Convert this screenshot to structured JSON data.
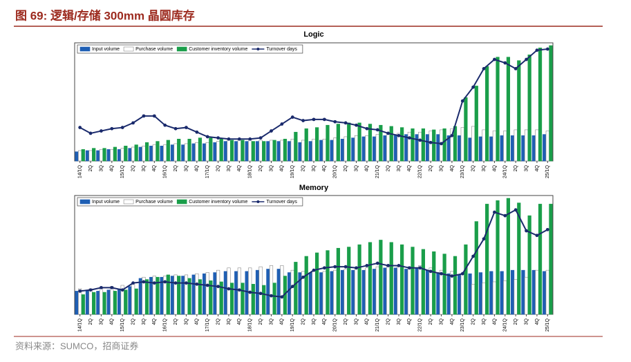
{
  "header": {
    "title": "图 69:  逻辑/存储 300mm 晶圆库存",
    "source": "资料来源：SUMCO，招商证券"
  },
  "chart_data": [
    {
      "type": "bar",
      "title": "Logic",
      "ylim": [
        0,
        100
      ],
      "categories": [
        "14/1Q",
        "2Q",
        "3Q",
        "4Q",
        "15/1Q",
        "2Q",
        "3Q",
        "4Q",
        "16/1Q",
        "2Q",
        "3Q",
        "4Q",
        "17/1Q",
        "2Q",
        "3Q",
        "4Q",
        "18/1Q",
        "2Q",
        "3Q",
        "4Q",
        "19/1Q",
        "2Q",
        "3Q",
        "4Q",
        "20/1Q",
        "2Q",
        "3Q",
        "4Q",
        "21/1Q",
        "2Q",
        "3Q",
        "4Q",
        "22/1Q",
        "2Q",
        "3Q",
        "4Q",
        "23/1Q",
        "2Q",
        "3Q",
        "4Q",
        "24/1Q",
        "2Q",
        "3Q",
        "4Q",
        "25/1Q"
      ],
      "series": [
        {
          "name": "Input volume",
          "color": "#1f5fb4",
          "kind": "bar",
          "values": [
            8,
            9,
            9,
            10,
            10,
            11,
            12,
            13,
            13,
            14,
            14,
            15,
            15,
            16,
            17,
            17,
            17,
            17,
            17,
            17,
            17,
            16,
            17,
            18,
            18,
            19,
            20,
            21,
            21,
            22,
            22,
            23,
            23,
            23,
            23,
            22,
            22,
            20,
            21,
            21,
            22,
            22,
            22,
            22,
            23
          ]
        },
        {
          "name": "Purchase volume",
          "color": "#ffffff",
          "kind": "bar",
          "values": [
            9,
            9,
            10,
            10,
            11,
            12,
            13,
            14,
            14,
            15,
            15,
            16,
            16,
            17,
            18,
            18,
            18,
            18,
            18,
            18,
            19,
            18,
            19,
            19,
            20,
            21,
            22,
            22,
            23,
            24,
            24,
            25,
            25,
            26,
            27,
            28,
            29,
            30,
            27,
            26,
            26,
            27,
            27,
            27,
            26
          ]
        },
        {
          "name": "Customer inventory volume",
          "color": "#1a9e4a",
          "kind": "bar",
          "values": [
            10,
            11,
            11,
            12,
            13,
            14,
            16,
            17,
            18,
            19,
            19,
            20,
            20,
            19,
            18,
            18,
            17,
            17,
            18,
            19,
            25,
            28,
            29,
            31,
            32,
            33,
            33,
            32,
            31,
            30,
            29,
            28,
            28,
            27,
            28,
            30,
            55,
            65,
            82,
            90,
            90,
            87,
            92,
            98,
            100
          ]
        },
        {
          "name": "Turnover days",
          "color": "#1a2a6c",
          "kind": "line",
          "values": [
            29,
            24,
            26,
            28,
            29,
            33,
            39,
            39,
            31,
            28,
            29,
            25,
            21,
            20,
            19,
            19,
            19,
            20,
            26,
            32,
            38,
            35,
            36,
            36,
            34,
            33,
            31,
            28,
            27,
            24,
            22,
            20,
            18,
            16,
            15,
            22,
            52,
            64,
            80,
            88,
            85,
            80,
            88,
            96,
            97
          ]
        }
      ]
    },
    {
      "type": "bar",
      "title": "Memory",
      "ylim": [
        0,
        100
      ],
      "categories": [
        "14/1Q",
        "2Q",
        "3Q",
        "4Q",
        "15/1Q",
        "2Q",
        "3Q",
        "4Q",
        "16/1Q",
        "2Q",
        "3Q",
        "4Q",
        "17/1Q",
        "2Q",
        "3Q",
        "4Q",
        "18/1Q",
        "2Q",
        "3Q",
        "4Q",
        "19/1Q",
        "2Q",
        "3Q",
        "4Q",
        "20/1Q",
        "2Q",
        "3Q",
        "4Q",
        "21/1Q",
        "2Q",
        "3Q",
        "4Q",
        "22/1Q",
        "2Q",
        "3Q",
        "4Q",
        "23/1Q",
        "2Q",
        "3Q",
        "4Q",
        "24/1Q",
        "2Q",
        "3Q",
        "4Q",
        "25/1Q"
      ],
      "series": [
        {
          "name": "Input volume",
          "color": "#1f5fb4",
          "kind": "bar",
          "values": [
            20,
            21,
            20,
            21,
            22,
            24,
            31,
            32,
            32,
            33,
            33,
            34,
            35,
            36,
            37,
            37,
            37,
            38,
            39,
            39,
            36,
            36,
            36,
            36,
            37,
            38,
            38,
            38,
            39,
            40,
            40,
            39,
            40,
            38,
            36,
            35,
            34,
            35,
            36,
            37,
            37,
            38,
            38,
            38,
            37
          ]
        },
        {
          "name": "Purchase volume",
          "color": "#ffffff",
          "kind": "bar",
          "values": [
            22,
            22,
            23,
            24,
            25,
            26,
            32,
            33,
            33,
            34,
            34,
            35,
            36,
            38,
            40,
            40,
            40,
            41,
            42,
            42,
            38,
            37,
            37,
            37,
            38,
            39,
            40,
            40,
            41,
            42,
            42,
            41,
            42,
            40,
            38,
            37,
            35,
            26,
            27,
            28,
            29,
            30,
            32,
            38,
            38
          ]
        },
        {
          "name": "Customer inventory volume",
          "color": "#1a9e4a",
          "kind": "bar",
          "values": [
            17,
            19,
            19,
            20,
            21,
            22,
            30,
            32,
            34,
            33,
            31,
            30,
            29,
            28,
            27,
            27,
            26,
            25,
            27,
            33,
            45,
            50,
            53,
            55,
            57,
            58,
            60,
            62,
            64,
            62,
            60,
            58,
            56,
            54,
            52,
            50,
            60,
            80,
            95,
            98,
            100,
            96,
            85,
            95,
            95
          ]
        },
        {
          "name": "Turnover days",
          "color": "#1a2a6c",
          "kind": "line",
          "values": [
            20,
            21,
            23,
            23,
            21,
            27,
            28,
            27,
            28,
            27,
            27,
            26,
            25,
            24,
            22,
            21,
            19,
            18,
            16,
            15,
            24,
            32,
            38,
            40,
            41,
            41,
            40,
            42,
            44,
            42,
            42,
            40,
            40,
            37,
            35,
            33,
            35,
            50,
            65,
            88,
            85,
            90,
            72,
            68,
            73
          ]
        }
      ]
    }
  ]
}
